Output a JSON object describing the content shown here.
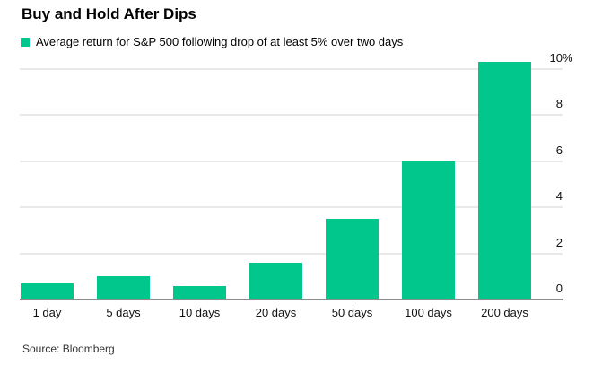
{
  "chart": {
    "title": "Buy and Hold After Dips",
    "legend": {
      "label": "Average return for S&P 500 following drop of at least 5% over two days",
      "swatch_color": "#02c78c"
    },
    "source": "Source: Bloomberg"
  },
  "colors": {
    "bar_green": "#02c78c",
    "gridline": "#e9e9e9",
    "axis_line": "#8c8c8c",
    "text": "#000000"
  },
  "chart_data": {
    "type": "bar",
    "title": "Buy and Hold After Dips",
    "legend": [
      "Average return for S&P 500 following drop of at least 5% over two days"
    ],
    "categories": [
      "1 day",
      "5 days",
      "10 days",
      "20 days",
      "50 days",
      "100 days",
      "200 days"
    ],
    "values": [
      0.7,
      1.0,
      0.6,
      1.6,
      3.5,
      6.0,
      10.3
    ],
    "unit": "%",
    "xlabel": "",
    "ylabel": "Average return",
    "ylim": [
      0,
      10.3
    ],
    "yticks": [
      {
        "value": 0,
        "label": "0"
      },
      {
        "value": 2,
        "label": "2"
      },
      {
        "value": 4,
        "label": "4"
      },
      {
        "value": 6,
        "label": "6"
      },
      {
        "value": 8,
        "label": "8"
      },
      {
        "value": 10,
        "label": "10",
        "suffix": "%"
      }
    ],
    "grid": "horizontal",
    "tick_label_position": "right",
    "legend_position": "top-left",
    "source": "Source: Bloomberg"
  }
}
